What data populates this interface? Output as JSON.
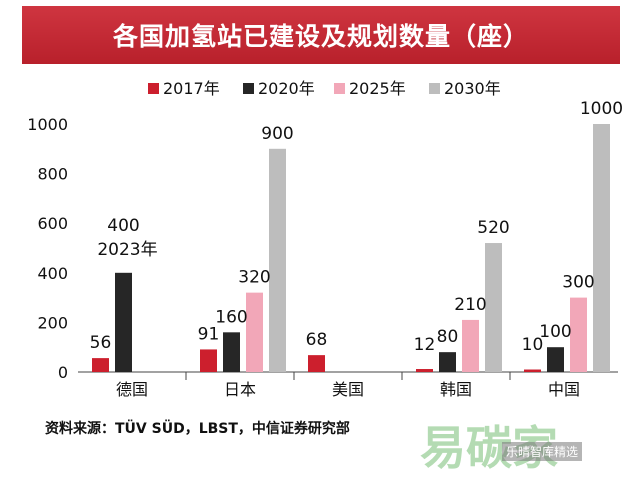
{
  "chart_data": {
    "type": "bar",
    "title": "各国加氢站已建设及规划数量（座）",
    "categories": [
      "德国",
      "日本",
      "美国",
      "韩国",
      "中国"
    ],
    "series": [
      {
        "name": "2017年",
        "color": "#cc1f2d",
        "values": [
          56,
          91,
          68,
          12,
          10
        ]
      },
      {
        "name": "2020年",
        "color": "#262626",
        "values": [
          400,
          160,
          null,
          80,
          100
        ]
      },
      {
        "name": "2025年",
        "color": "#f2a7b8",
        "values": [
          null,
          320,
          null,
          210,
          300
        ]
      },
      {
        "name": "2030年",
        "color": "#bdbdbd",
        "values": [
          null,
          900,
          null,
          520,
          1000
        ]
      }
    ],
    "labels": [
      [
        "56",
        "91",
        "68",
        "12",
        "10"
      ],
      [
        "400",
        "160",
        "",
        "80",
        "100"
      ],
      [
        "",
        "320",
        "",
        "210",
        "300"
      ],
      [
        "",
        "900",
        "",
        "520",
        "1000"
      ]
    ],
    "annotation": "2023年",
    "yticks": [
      0,
      200,
      400,
      600,
      800,
      1000
    ],
    "ylim": [
      0,
      1000
    ],
    "xlabel": "",
    "ylabel": "",
    "legend_position": "top"
  },
  "source": "资料来源：TÜV SÜD，LBST，中信证券研究部",
  "watermark": "易碳家",
  "watermark_sub": "乐晴智库精选"
}
